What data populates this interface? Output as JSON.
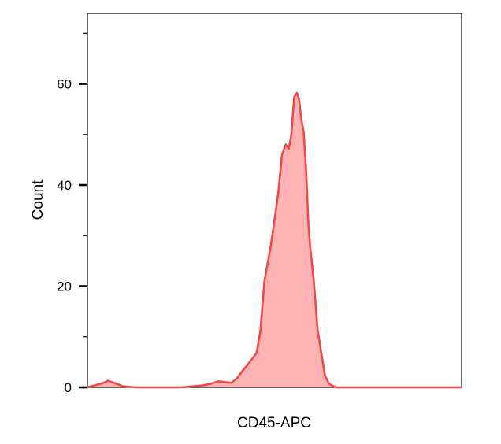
{
  "chart_data": {
    "type": "area",
    "title": "",
    "xlabel": "CD45-APC",
    "ylabel": "Count",
    "xlim": [
      0,
      1
    ],
    "ylim": [
      0,
      75
    ],
    "yticks": [
      0,
      20,
      40,
      60
    ],
    "ytick_labels": [
      "0",
      "20",
      "40",
      "60"
    ],
    "minor_ytick_step": 10,
    "grid": false,
    "legend": "none",
    "series": [
      {
        "color_line": "#f04848",
        "color_fill": "#ffb3b5",
        "x": [
          0.0,
          0.02,
          0.04,
          0.055,
          0.075,
          0.095,
          0.13,
          0.2,
          0.25,
          0.3,
          0.33,
          0.35,
          0.37,
          0.385,
          0.4,
          0.415,
          0.425,
          0.44,
          0.452,
          0.462,
          0.473,
          0.49,
          0.497,
          0.51,
          0.52,
          0.53,
          0.538,
          0.545,
          0.55,
          0.553,
          0.56,
          0.565,
          0.57,
          0.573,
          0.578,
          0.585,
          0.59,
          0.595,
          0.605,
          0.615,
          0.625,
          0.635,
          0.645,
          0.655,
          0.665,
          0.675,
          0.69,
          0.71,
          0.74,
          0.8,
          0.9,
          1.0
        ],
        "y": [
          0.0,
          0.4,
          0.8,
          1.3,
          0.8,
          0.2,
          0.0,
          0.0,
          0.0,
          0.3,
          0.7,
          1.2,
          1.0,
          0.9,
          1.8,
          3.3,
          4.2,
          5.6,
          6.8,
          11.0,
          21.0,
          28.0,
          31.5,
          38.5,
          46.0,
          48.0,
          47.2,
          50.0,
          55.0,
          57.5,
          58.2,
          57.2,
          54.0,
          52.5,
          50.5,
          42.0,
          33.0,
          28.0,
          21.0,
          11.5,
          6.8,
          2.3,
          0.8,
          0.3,
          0.0,
          0.0,
          0.0,
          0.0,
          0.0,
          0.0,
          0.0,
          0.0
        ]
      }
    ]
  }
}
